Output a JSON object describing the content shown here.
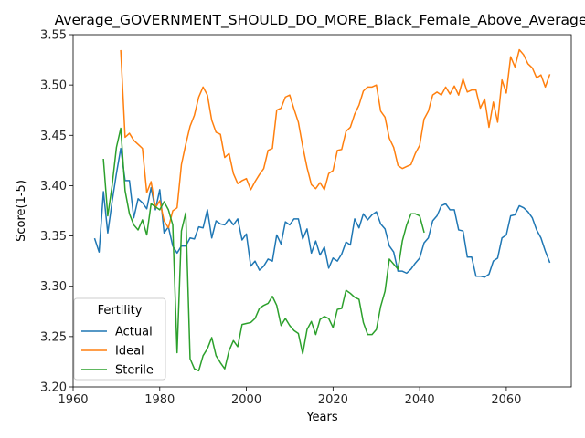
{
  "chart_data": {
    "type": "line",
    "title": "Average_GOVERNMENT_SHOULD_DO_MORE_Black_Female_Above_Average",
    "xlabel": "Years",
    "ylabel": "Score(1-5)",
    "xlim": [
      1960,
      2075
    ],
    "ylim": [
      3.2,
      3.55
    ],
    "xticks": [
      1960,
      1980,
      2000,
      2020,
      2040,
      2060
    ],
    "yticks": [
      3.2,
      3.25,
      3.3,
      3.35,
      3.4,
      3.45,
      3.5,
      3.55
    ],
    "ytick_labels": [
      "3.20",
      "3.25",
      "3.30",
      "3.35",
      "3.40",
      "3.45",
      "3.50",
      "3.55"
    ],
    "grid": false,
    "legend": {
      "title": "Fertility",
      "placement": "lower-left"
    },
    "series": [
      {
        "name": "Actual",
        "color": "#1f77b4",
        "x": [
          1965,
          1966,
          1967,
          1968,
          1969,
          1970,
          1971,
          1972,
          1973,
          1974,
          1975,
          1976,
          1977,
          1978,
          1979,
          1980,
          1981,
          1982,
          1983,
          1984,
          1985,
          1986,
          1987,
          1988,
          1989,
          1990,
          1991,
          1992,
          1993,
          1994,
          1995,
          1996,
          1997,
          1998,
          1999,
          2000,
          2001,
          2002,
          2003,
          2004,
          2005,
          2006,
          2007,
          2008,
          2009,
          2010,
          2011,
          2012,
          2013,
          2014,
          2015,
          2016,
          2017,
          2018,
          2019,
          2020,
          2021,
          2022,
          2023,
          2024,
          2025,
          2026,
          2027,
          2028,
          2029,
          2030,
          2031,
          2032,
          2033,
          2034,
          2035,
          2036,
          2037,
          2038,
          2039,
          2040,
          2041,
          2042,
          2043,
          2044,
          2045,
          2046,
          2047,
          2048,
          2049,
          2050,
          2051,
          2052,
          2053,
          2054,
          2055,
          2056,
          2057,
          2058,
          2059,
          2060,
          2061,
          2062,
          2063,
          2064,
          2065,
          2066,
          2067,
          2068,
          2069,
          2070
        ],
        "values": [
          3.347,
          3.334,
          3.394,
          3.353,
          3.384,
          3.412,
          3.437,
          3.405,
          3.405,
          3.368,
          3.387,
          3.383,
          3.377,
          3.398,
          3.376,
          3.396,
          3.353,
          3.359,
          3.34,
          3.333,
          3.34,
          3.34,
          3.348,
          3.347,
          3.359,
          3.358,
          3.376,
          3.348,
          3.365,
          3.362,
          3.361,
          3.367,
          3.361,
          3.367,
          3.346,
          3.352,
          3.32,
          3.325,
          3.316,
          3.32,
          3.327,
          3.325,
          3.351,
          3.342,
          3.364,
          3.361,
          3.367,
          3.367,
          3.347,
          3.357,
          3.333,
          3.345,
          3.331,
          3.339,
          3.318,
          3.328,
          3.325,
          3.332,
          3.344,
          3.341,
          3.367,
          3.358,
          3.372,
          3.366,
          3.371,
          3.374,
          3.362,
          3.357,
          3.34,
          3.334,
          3.315,
          3.315,
          3.313,
          3.317,
          3.323,
          3.328,
          3.343,
          3.348,
          3.365,
          3.37,
          3.38,
          3.382,
          3.376,
          3.376,
          3.356,
          3.355,
          3.329,
          3.329,
          3.31,
          3.31,
          3.309,
          3.312,
          3.325,
          3.328,
          3.348,
          3.351,
          3.37,
          3.371,
          3.38,
          3.378,
          3.374,
          3.368,
          3.356,
          3.348,
          3.335,
          3.324
        ]
      },
      {
        "name": "Ideal",
        "color": "#ff7f0e",
        "x": [
          1971,
          1972,
          1973,
          1974,
          1975,
          1976,
          1977,
          1978,
          1979,
          1980,
          1981,
          1982,
          1983,
          1984,
          1985,
          1986,
          1987,
          1988,
          1989,
          1990,
          1991,
          1992,
          1993,
          1994,
          1995,
          1996,
          1997,
          1998,
          1999,
          2000,
          2001,
          2002,
          2003,
          2004,
          2005,
          2006,
          2007,
          2008,
          2009,
          2010,
          2011,
          2012,
          2013,
          2014,
          2015,
          2016,
          2017,
          2018,
          2019,
          2020,
          2021,
          2022,
          2023,
          2024,
          2025,
          2026,
          2027,
          2028,
          2029,
          2030,
          2031,
          2032,
          2033,
          2034,
          2035,
          2036,
          2037,
          2038,
          2039,
          2040,
          2041,
          2042,
          2043,
          2044,
          2045,
          2046,
          2047,
          2048,
          2049,
          2050,
          2051,
          2052,
          2053,
          2054,
          2055,
          2056,
          2057,
          2058,
          2059,
          2060,
          2061,
          2062,
          2063,
          2064,
          2065,
          2066,
          2067,
          2068,
          2069,
          2070
        ],
        "values": [
          3.534,
          3.448,
          3.452,
          3.445,
          3.441,
          3.437,
          3.393,
          3.404,
          3.378,
          3.385,
          3.365,
          3.358,
          3.375,
          3.378,
          3.421,
          3.441,
          3.459,
          3.47,
          3.488,
          3.498,
          3.49,
          3.465,
          3.453,
          3.451,
          3.428,
          3.432,
          3.412,
          3.402,
          3.405,
          3.407,
          3.396,
          3.404,
          3.411,
          3.417,
          3.435,
          3.437,
          3.475,
          3.477,
          3.488,
          3.49,
          3.476,
          3.463,
          3.439,
          3.418,
          3.401,
          3.397,
          3.403,
          3.396,
          3.412,
          3.415,
          3.435,
          3.436,
          3.454,
          3.458,
          3.471,
          3.48,
          3.494,
          3.498,
          3.498,
          3.5,
          3.474,
          3.468,
          3.447,
          3.438,
          3.42,
          3.417,
          3.419,
          3.421,
          3.432,
          3.44,
          3.466,
          3.474,
          3.49,
          3.493,
          3.49,
          3.498,
          3.491,
          3.499,
          3.49,
          3.506,
          3.493,
          3.495,
          3.495,
          3.477,
          3.486,
          3.458,
          3.483,
          3.463,
          3.505,
          3.492,
          3.528,
          3.518,
          3.535,
          3.53,
          3.521,
          3.517,
          3.507,
          3.51,
          3.498,
          3.51
        ]
      },
      {
        "name": "Sterile",
        "color": "#2ca02c",
        "x": [
          1967,
          1968,
          1969,
          1970,
          1971,
          1972,
          1973,
          1974,
          1975,
          1976,
          1977,
          1978,
          1979,
          1980,
          1981,
          1982,
          1983,
          1984,
          1985,
          1986,
          1987,
          1988,
          1989,
          1990,
          1991,
          1992,
          1993,
          1994,
          1995,
          1996,
          1997,
          1998,
          1999,
          2000,
          2001,
          2002,
          2003,
          2004,
          2005,
          2006,
          2007,
          2008,
          2009,
          2010,
          2011,
          2012,
          2013,
          2014,
          2015,
          2016,
          2017,
          2018,
          2019,
          2020,
          2021,
          2022,
          2023,
          2024,
          2025,
          2026,
          2027,
          2028,
          2029,
          2030,
          2031,
          2032,
          2033,
          2034,
          2035,
          2036,
          2037,
          2038,
          2039,
          2040,
          2041
        ],
        "values": [
          3.426,
          3.37,
          3.4,
          3.438,
          3.457,
          3.395,
          3.372,
          3.361,
          3.356,
          3.366,
          3.351,
          3.382,
          3.379,
          3.376,
          3.384,
          3.376,
          3.361,
          3.234,
          3.355,
          3.373,
          3.228,
          3.218,
          3.216,
          3.231,
          3.238,
          3.249,
          3.231,
          3.224,
          3.218,
          3.236,
          3.246,
          3.24,
          3.262,
          3.263,
          3.264,
          3.268,
          3.278,
          3.281,
          3.283,
          3.29,
          3.281,
          3.261,
          3.268,
          3.261,
          3.256,
          3.253,
          3.233,
          3.257,
          3.265,
          3.252,
          3.267,
          3.27,
          3.268,
          3.259,
          3.277,
          3.278,
          3.296,
          3.293,
          3.289,
          3.287,
          3.264,
          3.252,
          3.252,
          3.257,
          3.28,
          3.295,
          3.327,
          3.322,
          3.317,
          3.345,
          3.361,
          3.372,
          3.372,
          3.37,
          3.354
        ]
      }
    ]
  }
}
